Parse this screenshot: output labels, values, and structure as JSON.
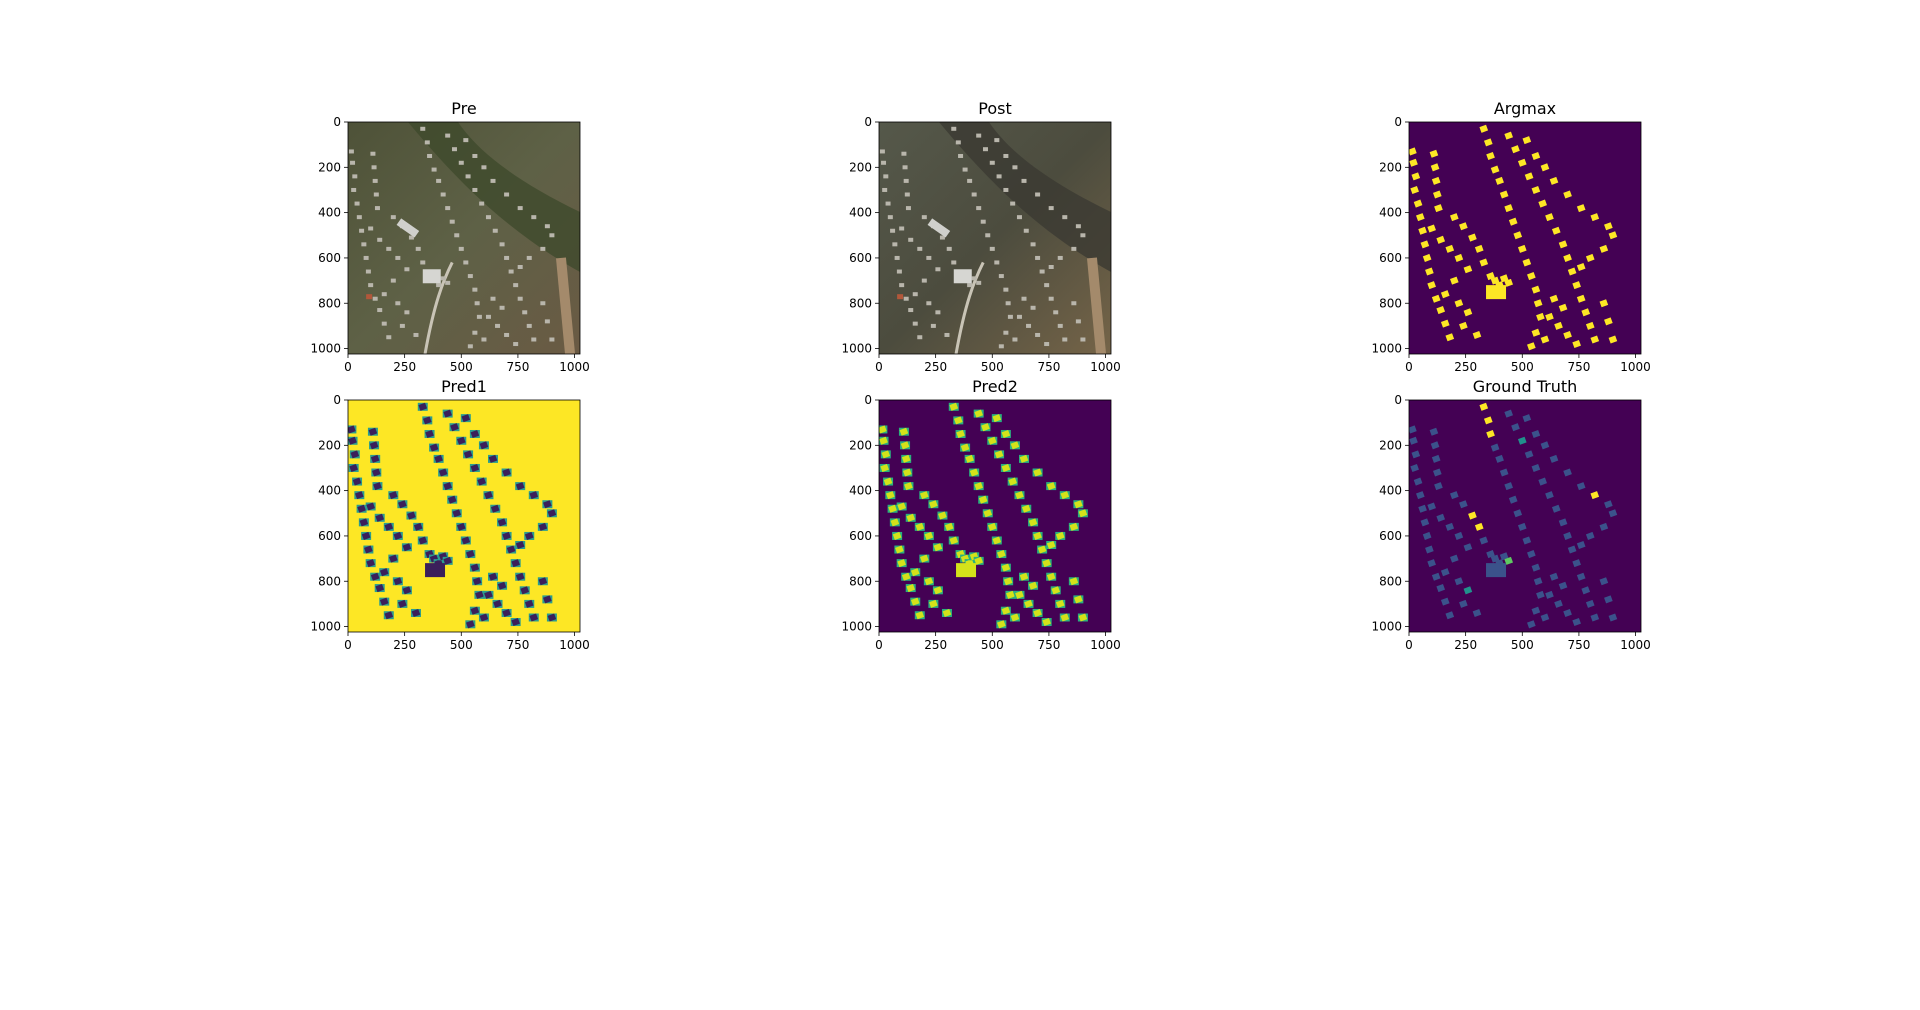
{
  "figure": {
    "panels": [
      {
        "id": "pre",
        "title": "Pre",
        "kind": "aerial-photo",
        "palette": "aerial-pre"
      },
      {
        "id": "post",
        "title": "Post",
        "kind": "aerial-photo",
        "palette": "aerial-post"
      },
      {
        "id": "argmax",
        "title": "Argmax",
        "kind": "mask",
        "background": "#440154",
        "foreground": "#fde725"
      },
      {
        "id": "pred1",
        "title": "Pred1",
        "kind": "mask",
        "background": "#fde725",
        "foreground": "#3b1f5a",
        "edge": "#2a9d8f"
      },
      {
        "id": "pred2",
        "title": "Pred2",
        "kind": "mask",
        "background": "#440154",
        "foreground": "#d4e21a",
        "edge": "#2ab07f"
      },
      {
        "id": "gt",
        "title": "Ground Truth",
        "kind": "mask",
        "background": "#440154",
        "foreground": "#3b528b",
        "accent": "#fde725",
        "accent2": "#21918c",
        "accent3": "#5ec962"
      }
    ]
  },
  "chart_data": {
    "type": "heatmap",
    "xlim": [
      0,
      1024
    ],
    "ylim": [
      1024,
      0
    ],
    "xticks": [
      0,
      250,
      500,
      750,
      1000
    ],
    "yticks": [
      0,
      200,
      400,
      600,
      800,
      1000
    ],
    "xtick_labels": [
      "0",
      "250",
      "500",
      "750",
      "1000"
    ],
    "ytick_labels": [
      "0",
      "200",
      "400",
      "600",
      "800",
      "1000"
    ],
    "buildings": [
      [
        15,
        130
      ],
      [
        20,
        180
      ],
      [
        30,
        240
      ],
      [
        25,
        300
      ],
      [
        40,
        360
      ],
      [
        50,
        420
      ],
      [
        60,
        480
      ],
      [
        70,
        540
      ],
      [
        80,
        600
      ],
      [
        90,
        660
      ],
      [
        100,
        720
      ],
      [
        120,
        780
      ],
      [
        140,
        830
      ],
      [
        160,
        890
      ],
      [
        180,
        950
      ],
      [
        110,
        140
      ],
      [
        115,
        200
      ],
      [
        120,
        260
      ],
      [
        125,
        320
      ],
      [
        130,
        380
      ],
      [
        100,
        470
      ],
      [
        140,
        520
      ],
      [
        180,
        560
      ],
      [
        220,
        600
      ],
      [
        260,
        650
      ],
      [
        200,
        700
      ],
      [
        160,
        760
      ],
      [
        220,
        800
      ],
      [
        260,
        840
      ],
      [
        240,
        900
      ],
      [
        300,
        940
      ],
      [
        200,
        420
      ],
      [
        240,
        460
      ],
      [
        280,
        510
      ],
      [
        310,
        560
      ],
      [
        330,
        620
      ],
      [
        360,
        680
      ],
      [
        380,
        700
      ],
      [
        400,
        720
      ],
      [
        420,
        690
      ],
      [
        440,
        710
      ],
      [
        330,
        30
      ],
      [
        350,
        90
      ],
      [
        360,
        150
      ],
      [
        380,
        210
      ],
      [
        400,
        260
      ],
      [
        420,
        320
      ],
      [
        440,
        380
      ],
      [
        460,
        440
      ],
      [
        480,
        500
      ],
      [
        500,
        560
      ],
      [
        520,
        620
      ],
      [
        540,
        680
      ],
      [
        560,
        740
      ],
      [
        570,
        800
      ],
      [
        580,
        860
      ],
      [
        560,
        930
      ],
      [
        540,
        990
      ],
      [
        440,
        60
      ],
      [
        470,
        120
      ],
      [
        500,
        180
      ],
      [
        530,
        240
      ],
      [
        560,
        300
      ],
      [
        590,
        360
      ],
      [
        620,
        420
      ],
      [
        650,
        480
      ],
      [
        680,
        540
      ],
      [
        700,
        600
      ],
      [
        720,
        660
      ],
      [
        740,
        720
      ],
      [
        760,
        780
      ],
      [
        780,
        840
      ],
      [
        800,
        900
      ],
      [
        820,
        960
      ],
      [
        520,
        80
      ],
      [
        560,
        150
      ],
      [
        600,
        200
      ],
      [
        640,
        260
      ],
      [
        700,
        320
      ],
      [
        760,
        380
      ],
      [
        820,
        420
      ],
      [
        880,
        460
      ],
      [
        900,
        500
      ],
      [
        860,
        560
      ],
      [
        800,
        600
      ],
      [
        760,
        640
      ],
      [
        620,
        860
      ],
      [
        660,
        900
      ],
      [
        700,
        940
      ],
      [
        740,
        980
      ],
      [
        680,
        820
      ],
      [
        640,
        780
      ],
      [
        600,
        960
      ],
      [
        860,
        800
      ],
      [
        880,
        880
      ],
      [
        900,
        960
      ]
    ],
    "damaged_buildings": [
      [
        330,
        60
      ],
      [
        340,
        150
      ],
      [
        360,
        260
      ],
      [
        120,
        430
      ],
      [
        200,
        480
      ],
      [
        260,
        520
      ],
      [
        320,
        560
      ],
      [
        820,
        390
      ],
      [
        880,
        420
      ]
    ]
  }
}
